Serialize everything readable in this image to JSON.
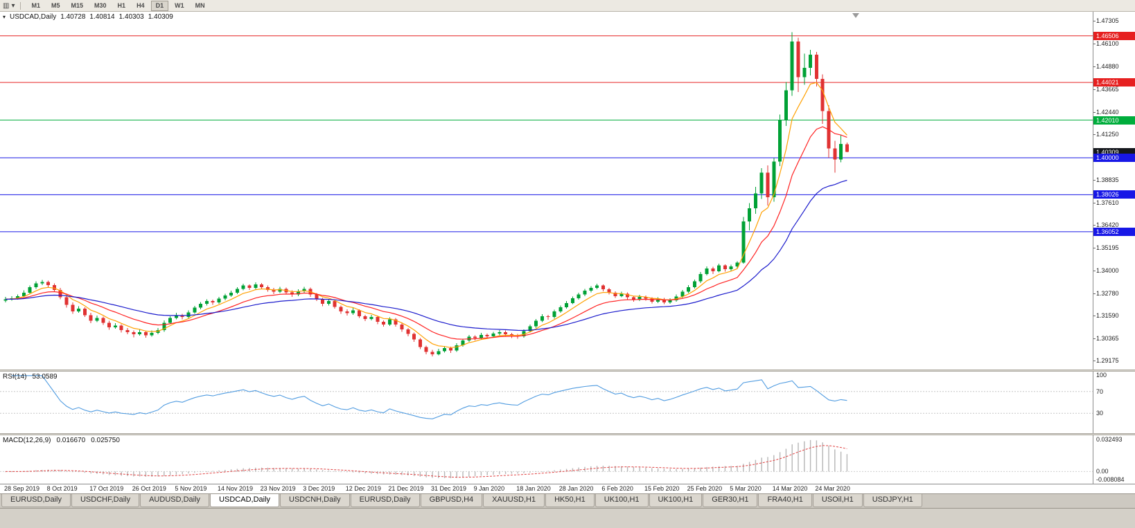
{
  "icons": {
    "chart_type": "▥",
    "dropdown": "▾",
    "one_click": "▾"
  },
  "toolbar": {
    "timeframes": [
      "M1",
      "M5",
      "M15",
      "M30",
      "H1",
      "H4",
      "D1",
      "W1",
      "MN"
    ],
    "active_timeframe": "D1"
  },
  "chart_header": {
    "symbol_label": "USDCAD,Daily",
    "open": "1.40728",
    "high": "1.40814",
    "low": "1.40303",
    "close": "1.40309"
  },
  "price_axis": {
    "ticks": [
      "1.47305",
      "1.46100",
      "1.44880",
      "1.43665",
      "1.42440",
      "1.41250",
      "1.40035",
      "1.38835",
      "1.37610",
      "1.36420",
      "1.35195",
      "1.34000",
      "1.32780",
      "1.31590",
      "1.30365",
      "1.29175"
    ],
    "badges": [
      {
        "label": "1.46506",
        "price": 1.46506,
        "color": "#e62020",
        "name": "price-badge-resistance-146506"
      },
      {
        "label": "1.44021",
        "price": 1.44021,
        "color": "#e62020",
        "name": "price-badge-resistance-144021"
      },
      {
        "label": "1.42010",
        "price": 1.4201,
        "color": "#00ad3c",
        "name": "price-badge-level-142010"
      },
      {
        "label": "1.40309",
        "price": 1.40309,
        "color": "#14171c",
        "name": "price-badge-current-price"
      },
      {
        "label": "1.40000",
        "price": 1.4,
        "color": "#1717e6",
        "name": "price-badge-support-140000"
      },
      {
        "label": "1.38026",
        "price": 1.38026,
        "color": "#1717e6",
        "name": "price-badge-support-138026"
      },
      {
        "label": "1.36052",
        "price": 1.36052,
        "color": "#1717e6",
        "name": "price-badge-support-136052"
      }
    ]
  },
  "levels": [
    {
      "price": 1.46506,
      "color": "#e62020"
    },
    {
      "price": 1.44021,
      "color": "#e62020"
    },
    {
      "price": 1.4201,
      "color": "#00ad3c"
    },
    {
      "price": 1.4,
      "color": "#1717e6"
    },
    {
      "price": 1.38026,
      "color": "#1717e6"
    },
    {
      "price": 1.36052,
      "color": "#1717e6"
    }
  ],
  "chart_data": {
    "type": "candlestick",
    "symbol": "USDCAD",
    "timeframe": "Daily",
    "colors": {
      "bull": "#00a135",
      "bear": "#e03232"
    },
    "date_labels": [
      "28 Sep 2019",
      "8 Oct 2019",
      "17 Oct 2019",
      "26 Oct 2019",
      "5 Nov 2019",
      "14 Nov 2019",
      "23 Nov 2019",
      "3 Dec 2019",
      "12 Dec 2019",
      "21 Dec 2019",
      "31 Dec 2019",
      "9 Jan 2020",
      "18 Jan 2020",
      "28 Jan 2020",
      "6 Feb 2020",
      "15 Feb 2020",
      "25 Feb 2020",
      "5 Mar 2020",
      "14 Mar 2020",
      "24 Mar 2020"
    ],
    "date_label_indices": [
      0,
      7,
      14,
      21,
      28,
      35,
      42,
      49,
      56,
      63,
      70,
      77,
      84,
      91,
      98,
      105,
      112,
      119,
      126,
      133
    ],
    "moving_averages": [
      {
        "name": "fast",
        "period": 6,
        "color": "#ffa000"
      },
      {
        "name": "mid",
        "period": 14,
        "color": "#ff2020"
      },
      {
        "name": "slow",
        "period": 32,
        "color": "#1a1acc"
      }
    ],
    "indicators": {
      "rsi": {
        "label": "RSI(14)",
        "value": "53.0589",
        "period": 14,
        "levels": [
          70,
          30
        ],
        "axis_labels": [
          {
            "v": 100,
            "t": "100"
          },
          {
            "v": 70,
            "t": "70"
          },
          {
            "v": 30,
            "t": "30"
          }
        ],
        "color": "#4f9be0"
      },
      "macd": {
        "label": "MACD(12,26,9)",
        "main_value": "0.016670",
        "signal_value": "0.025750",
        "fast": 12,
        "slow": 26,
        "signal_period": 9,
        "range": [
          -0.008084,
          0.032493
        ],
        "axis_labels": [
          {
            "v": 0.032493,
            "t": "0.032493"
          },
          {
            "v": 0,
            "t": "0.00"
          },
          {
            "v": -0.008084,
            "t": "-0.008084"
          }
        ],
        "histogram_color": "#b6b6b6",
        "signal_color": "#e04040"
      }
    },
    "candles": [
      [
        1.3238,
        1.3258,
        1.3228,
        1.3245
      ],
      [
        1.3245,
        1.3262,
        1.3238,
        1.325
      ],
      [
        1.325,
        1.327,
        1.3242,
        1.3262
      ],
      [
        1.3262,
        1.3292,
        1.3255,
        1.328
      ],
      [
        1.328,
        1.3318,
        1.3272,
        1.331
      ],
      [
        1.331,
        1.334,
        1.33,
        1.333
      ],
      [
        1.333,
        1.3348,
        1.332,
        1.3338
      ],
      [
        1.3338,
        1.3345,
        1.3308,
        1.332
      ],
      [
        1.332,
        1.333,
        1.3285,
        1.3295
      ],
      [
        1.3295,
        1.3305,
        1.3245,
        1.3255
      ],
      [
        1.3255,
        1.3262,
        1.32,
        1.3215
      ],
      [
        1.3215,
        1.3228,
        1.3168,
        1.318
      ],
      [
        1.318,
        1.3208,
        1.3172,
        1.3195
      ],
      [
        1.3195,
        1.3202,
        1.315,
        1.316
      ],
      [
        1.316,
        1.3172,
        1.3118,
        1.313
      ],
      [
        1.313,
        1.3158,
        1.3122,
        1.3145
      ],
      [
        1.3145,
        1.3152,
        1.3108,
        1.312
      ],
      [
        1.312,
        1.313,
        1.3082,
        1.3095
      ],
      [
        1.3095,
        1.3118,
        1.3088,
        1.3105
      ],
      [
        1.3105,
        1.3112,
        1.3068,
        1.308
      ],
      [
        1.308,
        1.3092,
        1.3058,
        1.307
      ],
      [
        1.307,
        1.3078,
        1.3042,
        1.3058
      ],
      [
        1.3058,
        1.3082,
        1.305,
        1.307
      ],
      [
        1.307,
        1.3076,
        1.304,
        1.3052
      ],
      [
        1.3052,
        1.3078,
        1.3045,
        1.3065
      ],
      [
        1.3065,
        1.3092,
        1.3058,
        1.308
      ],
      [
        1.308,
        1.3132,
        1.3072,
        1.312
      ],
      [
        1.312,
        1.3155,
        1.3112,
        1.3145
      ],
      [
        1.3145,
        1.3172,
        1.3138,
        1.316
      ],
      [
        1.316,
        1.3168,
        1.3138,
        1.315
      ],
      [
        1.315,
        1.3185,
        1.3142,
        1.3175
      ],
      [
        1.3175,
        1.321,
        1.3168,
        1.32
      ],
      [
        1.32,
        1.323,
        1.3192,
        1.322
      ],
      [
        1.322,
        1.3245,
        1.3212,
        1.3235
      ],
      [
        1.3235,
        1.3242,
        1.3215,
        1.3228
      ],
      [
        1.3228,
        1.3258,
        1.322,
        1.3248
      ],
      [
        1.3248,
        1.3275,
        1.324,
        1.3265
      ],
      [
        1.3265,
        1.329,
        1.3258,
        1.328
      ],
      [
        1.328,
        1.331,
        1.3272,
        1.33
      ],
      [
        1.33,
        1.3328,
        1.3292,
        1.3318
      ],
      [
        1.3318,
        1.3325,
        1.3295,
        1.3305
      ],
      [
        1.3305,
        1.3335,
        1.3298,
        1.3325
      ],
      [
        1.3325,
        1.3332,
        1.33,
        1.331
      ],
      [
        1.331,
        1.3318,
        1.3285,
        1.3295
      ],
      [
        1.3295,
        1.3305,
        1.3272,
        1.3285
      ],
      [
        1.3285,
        1.3312,
        1.3278,
        1.33
      ],
      [
        1.33,
        1.3308,
        1.3272,
        1.3282
      ],
      [
        1.3282,
        1.3292,
        1.3258,
        1.327
      ],
      [
        1.327,
        1.3298,
        1.3262,
        1.3288
      ],
      [
        1.3288,
        1.3312,
        1.328,
        1.33
      ],
      [
        1.33,
        1.3308,
        1.3258,
        1.327
      ],
      [
        1.327,
        1.3278,
        1.3235,
        1.3245
      ],
      [
        1.3245,
        1.3252,
        1.3208,
        1.322
      ],
      [
        1.322,
        1.3245,
        1.3212,
        1.3235
      ],
      [
        1.3235,
        1.3242,
        1.3195,
        1.3205
      ],
      [
        1.3205,
        1.3212,
        1.3168,
        1.318
      ],
      [
        1.318,
        1.3192,
        1.3158,
        1.317
      ],
      [
        1.317,
        1.3198,
        1.3162,
        1.3185
      ],
      [
        1.3185,
        1.3192,
        1.3145,
        1.3155
      ],
      [
        1.3155,
        1.3162,
        1.3128,
        1.314
      ],
      [
        1.314,
        1.3162,
        1.3132,
        1.315
      ],
      [
        1.315,
        1.3158,
        1.3112,
        1.3125
      ],
      [
        1.3125,
        1.3132,
        1.3098,
        1.311
      ],
      [
        1.311,
        1.3148,
        1.3102,
        1.3138
      ],
      [
        1.3138,
        1.3145,
        1.3098,
        1.311
      ],
      [
        1.311,
        1.3118,
        1.3072,
        1.3085
      ],
      [
        1.3085,
        1.3092,
        1.3048,
        1.306
      ],
      [
        1.306,
        1.3068,
        1.3018,
        1.303
      ],
      [
        1.303,
        1.3038,
        1.2978,
        1.299
      ],
      [
        1.299,
        1.2998,
        1.2952,
        1.2965
      ],
      [
        1.2965,
        1.2975,
        1.294,
        1.2952
      ],
      [
        1.2952,
        1.298,
        1.2945,
        1.2968
      ],
      [
        1.2968,
        1.2995,
        1.296,
        1.2985
      ],
      [
        1.2985,
        1.2992,
        1.2958,
        1.2972
      ],
      [
        1.2972,
        1.301,
        1.2965,
        1.3
      ],
      [
        1.3,
        1.3035,
        1.2992,
        1.3025
      ],
      [
        1.3025,
        1.3055,
        1.3018,
        1.3045
      ],
      [
        1.3045,
        1.3052,
        1.3025,
        1.3038
      ],
      [
        1.3038,
        1.3065,
        1.303,
        1.3055
      ],
      [
        1.3055,
        1.3062,
        1.3035,
        1.3048
      ],
      [
        1.3048,
        1.3072,
        1.304,
        1.3062
      ],
      [
        1.3062,
        1.308,
        1.3052,
        1.307
      ],
      [
        1.307,
        1.3078,
        1.3045,
        1.3058
      ],
      [
        1.3058,
        1.3065,
        1.3038,
        1.3052
      ],
      [
        1.3052,
        1.306,
        1.3035,
        1.3048
      ],
      [
        1.3048,
        1.3085,
        1.304,
        1.3075
      ],
      [
        1.3075,
        1.311,
        1.3068,
        1.31
      ],
      [
        1.31,
        1.314,
        1.3092,
        1.313
      ],
      [
        1.313,
        1.3165,
        1.3122,
        1.3155
      ],
      [
        1.3155,
        1.3162,
        1.3135,
        1.315
      ],
      [
        1.315,
        1.319,
        1.3142,
        1.318
      ],
      [
        1.318,
        1.3212,
        1.3172,
        1.3202
      ],
      [
        1.3202,
        1.3235,
        1.3195,
        1.3225
      ],
      [
        1.3225,
        1.326,
        1.3218,
        1.325
      ],
      [
        1.325,
        1.328,
        1.3242,
        1.327
      ],
      [
        1.327,
        1.33,
        1.3262,
        1.329
      ],
      [
        1.329,
        1.3315,
        1.3282,
        1.3305
      ],
      [
        1.3305,
        1.3328,
        1.3298,
        1.3318
      ],
      [
        1.3318,
        1.3325,
        1.3288,
        1.3298
      ],
      [
        1.3298,
        1.3305,
        1.327,
        1.328
      ],
      [
        1.328,
        1.3288,
        1.3252,
        1.3262
      ],
      [
        1.3262,
        1.3285,
        1.3255,
        1.3275
      ],
      [
        1.3275,
        1.3282,
        1.3245,
        1.3255
      ],
      [
        1.3255,
        1.3262,
        1.3232,
        1.3242
      ],
      [
        1.3242,
        1.3268,
        1.3235,
        1.3258
      ],
      [
        1.3258,
        1.3265,
        1.3238,
        1.3248
      ],
      [
        1.3248,
        1.3255,
        1.3222,
        1.3232
      ],
      [
        1.3232,
        1.3255,
        1.3225,
        1.3245
      ],
      [
        1.3245,
        1.3252,
        1.3218,
        1.3228
      ],
      [
        1.3228,
        1.325,
        1.322,
        1.324
      ],
      [
        1.324,
        1.327,
        1.3232,
        1.326
      ],
      [
        1.326,
        1.3295,
        1.3252,
        1.3285
      ],
      [
        1.3285,
        1.332,
        1.3278,
        1.331
      ],
      [
        1.331,
        1.335,
        1.3302,
        1.334
      ],
      [
        1.334,
        1.339,
        1.3332,
        1.338
      ],
      [
        1.338,
        1.342,
        1.3372,
        1.341
      ],
      [
        1.341,
        1.3418,
        1.338,
        1.3395
      ],
      [
        1.3395,
        1.3435,
        1.3388,
        1.3425
      ],
      [
        1.3425,
        1.3432,
        1.3392,
        1.3405
      ],
      [
        1.3405,
        1.343,
        1.3395,
        1.342
      ],
      [
        1.342,
        1.3448,
        1.341,
        1.344
      ],
      [
        1.344,
        1.3685,
        1.3435,
        1.366
      ],
      [
        1.366,
        1.3758,
        1.3612,
        1.373
      ],
      [
        1.373,
        1.3845,
        1.37,
        1.381
      ],
      [
        1.381,
        1.3945,
        1.378,
        1.392
      ],
      [
        1.392,
        1.396,
        1.3745,
        1.379
      ],
      [
        1.379,
        1.4,
        1.3765,
        1.398
      ],
      [
        1.398,
        1.423,
        1.3955,
        1.42
      ],
      [
        1.42,
        1.4405,
        1.417,
        1.436
      ],
      [
        1.436,
        1.467,
        1.433,
        1.462
      ],
      [
        1.462,
        1.464,
        1.435,
        1.443
      ],
      [
        1.443,
        1.4555,
        1.439,
        1.448
      ],
      [
        1.448,
        1.4575,
        1.444,
        1.455
      ],
      [
        1.455,
        1.4565,
        1.438,
        1.442
      ],
      [
        1.442,
        1.4445,
        1.418,
        1.425
      ],
      [
        1.425,
        1.428,
        1.4,
        1.405
      ],
      [
        1.405,
        1.409,
        1.392,
        1.399
      ],
      [
        1.399,
        1.412,
        1.3975,
        1.4073
      ],
      [
        1.40728,
        1.40814,
        1.40303,
        1.40309
      ]
    ]
  },
  "tabs": {
    "items": [
      {
        "label": "EURUSD,Daily",
        "active": false
      },
      {
        "label": "USDCHF,Daily",
        "active": false
      },
      {
        "label": "AUDUSD,Daily",
        "active": false
      },
      {
        "label": "USDCAD,Daily",
        "active": true
      },
      {
        "label": "USDCNH,Daily",
        "active": false
      },
      {
        "label": "EURUSD,Daily",
        "active": false
      },
      {
        "label": "GBPUSD,H4",
        "active": false
      },
      {
        "label": "XAUUSD,H1",
        "active": false
      },
      {
        "label": "HK50,H1",
        "active": false
      },
      {
        "label": "UK100,H1",
        "active": false
      },
      {
        "label": "UK100,H1",
        "active": false
      },
      {
        "label": "GER30,H1",
        "active": false
      },
      {
        "label": "FRA40,H1",
        "active": false
      },
      {
        "label": "USOil,H1",
        "active": false
      },
      {
        "label": "USDJPY,H1",
        "active": false
      }
    ]
  }
}
